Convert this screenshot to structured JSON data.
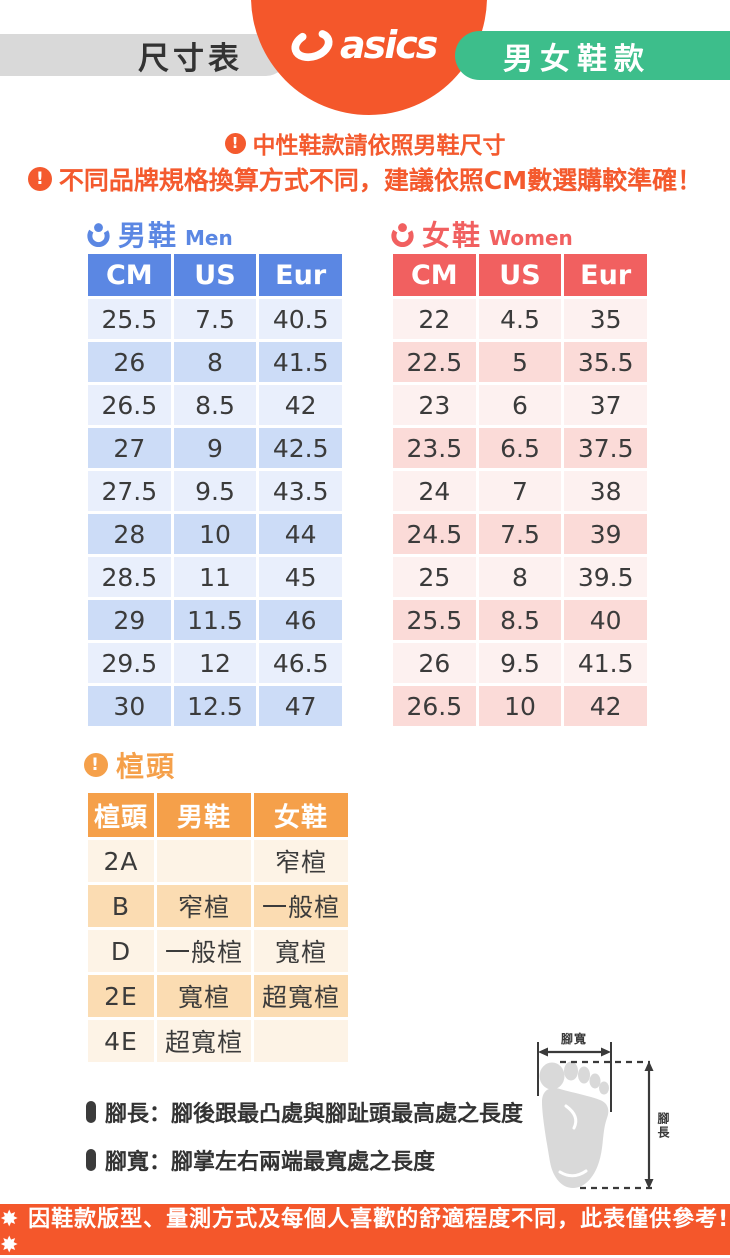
{
  "header": {
    "title_pill": "尺寸表",
    "brand": "asics",
    "category_pill": "男女鞋款"
  },
  "notices": {
    "line1": "中性鞋款請依照男鞋尺寸",
    "line2": "不同品牌規格換算方式不同，建議依照CM數選購較準確！",
    "bang": "!"
  },
  "men_table": {
    "title_zh": "男鞋",
    "title_en": "Men",
    "headers": [
      "CM",
      "US",
      "Eur"
    ],
    "rows": [
      [
        "25.5",
        "7.5",
        "40.5"
      ],
      [
        "26",
        "8",
        "41.5"
      ],
      [
        "26.5",
        "8.5",
        "42"
      ],
      [
        "27",
        "9",
        "42.5"
      ],
      [
        "27.5",
        "9.5",
        "43.5"
      ],
      [
        "28",
        "10",
        "44"
      ],
      [
        "28.5",
        "11",
        "45"
      ],
      [
        "29",
        "11.5",
        "46"
      ],
      [
        "29.5",
        "12",
        "46.5"
      ],
      [
        "30",
        "12.5",
        "47"
      ]
    ]
  },
  "women_table": {
    "title_zh": "女鞋",
    "title_en": "Women",
    "headers": [
      "CM",
      "US",
      "Eur"
    ],
    "rows": [
      [
        "22",
        "4.5",
        "35"
      ],
      [
        "22.5",
        "5",
        "35.5"
      ],
      [
        "23",
        "6",
        "37"
      ],
      [
        "23.5",
        "6.5",
        "37.5"
      ],
      [
        "24",
        "7",
        "38"
      ],
      [
        "24.5",
        "7.5",
        "39"
      ],
      [
        "25",
        "8",
        "39.5"
      ],
      [
        "25.5",
        "8.5",
        "40"
      ],
      [
        "26",
        "9.5",
        "41.5"
      ],
      [
        "26.5",
        "10",
        "42"
      ]
    ]
  },
  "width_section": {
    "title": "楦頭",
    "headers": [
      "楦頭",
      "男鞋",
      "女鞋"
    ],
    "rows": [
      [
        "2A",
        "",
        "窄楦"
      ],
      [
        "B",
        "窄楦",
        "一般楦"
      ],
      [
        "D",
        "一般楦",
        "寬楦"
      ],
      [
        "2E",
        "寬楦",
        "超寬楦"
      ],
      [
        "4E",
        "超寬楦",
        ""
      ]
    ]
  },
  "notes": {
    "length": "腳長：腳後跟最凸處與腳趾頭最高處之長度",
    "width": "腳寬：腳掌左右兩端最寬處之長度"
  },
  "foot_diagram": {
    "width_label": "腳寬",
    "length_label": "腳長"
  },
  "footer_text": "✸ 因鞋款版型、量測方式及每個人喜歡的舒適程度不同，此表僅供參考!✸",
  "colors": {
    "brand_orange": "#f4572b",
    "notice_orange": "#f45a2e",
    "men_blue": "#5b87e3",
    "women_red": "#f16060",
    "width_orange": "#f5a04a",
    "pill_green": "#3dbe8b",
    "pill_gray": "#d9d9d9"
  }
}
